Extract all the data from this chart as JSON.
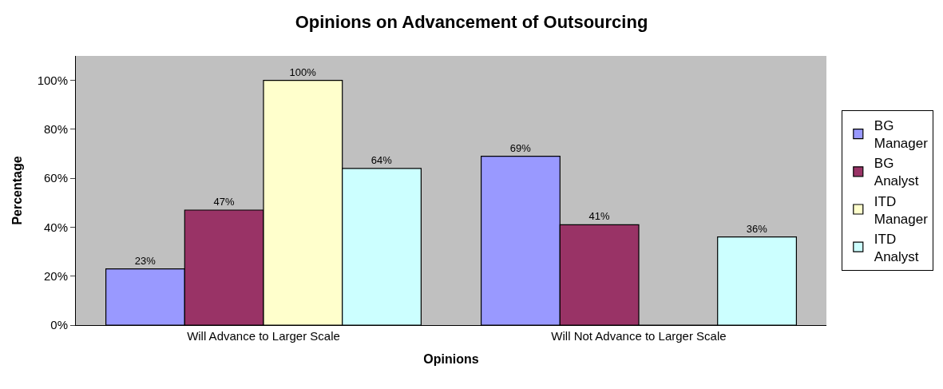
{
  "chart_data": {
    "type": "bar",
    "title": "Opinions on Advancement of Outsourcing",
    "xlabel": "Opinions",
    "ylabel": "Percentage",
    "categories": [
      "Will Advance to Larger Scale",
      "Will Not Advance to Larger Scale"
    ],
    "series": [
      {
        "name": "BG Manager",
        "color": "#9999ff",
        "values": [
          23,
          69
        ],
        "value_labels": [
          "23%",
          "69%"
        ]
      },
      {
        "name": "BG Analyst",
        "color": "#993366",
        "values": [
          47,
          41
        ],
        "value_labels": [
          "47%",
          "41%"
        ]
      },
      {
        "name": "ITD Manager",
        "color": "#ffffcc",
        "values": [
          100,
          0
        ],
        "value_labels": [
          "100%",
          null
        ]
      },
      {
        "name": "ITD Analyst",
        "color": "#ccffff",
        "values": [
          64,
          36
        ],
        "value_labels": [
          "64%",
          "36%"
        ]
      }
    ],
    "ylim": [
      0,
      110
    ],
    "yticks": [
      {
        "value": 0,
        "label": "0%"
      },
      {
        "value": 20,
        "label": "20%"
      },
      {
        "value": 40,
        "label": "40%"
      },
      {
        "value": 60,
        "label": "60%"
      },
      {
        "value": 80,
        "label": "80%"
      },
      {
        "value": 100,
        "label": "100%"
      }
    ],
    "legend": "right"
  }
}
